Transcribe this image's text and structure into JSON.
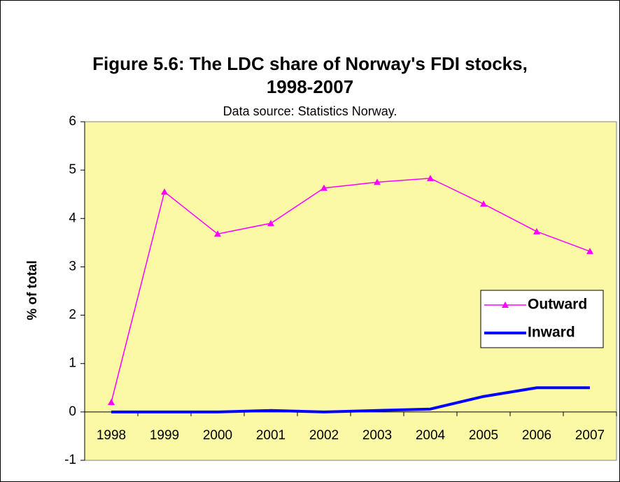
{
  "chart_data": {
    "type": "line",
    "title": [
      "Figure 5.6: The LDC share of Norway's FDI stocks,",
      "1998-2007"
    ],
    "subtitle": "Data source: Statistics Norway.",
    "y_label": "% of total",
    "categories": [
      "1998",
      "1999",
      "2000",
      "2001",
      "2002",
      "2003",
      "2004",
      "2005",
      "2006",
      "2007"
    ],
    "series": [
      {
        "name": "Outward",
        "color": "#ff00ff",
        "marker": "triangle",
        "values": [
          0.2,
          4.55,
          3.68,
          3.9,
          4.63,
          4.75,
          4.83,
          4.3,
          3.73,
          3.32
        ]
      },
      {
        "name": "Inward",
        "color": "#0000ff",
        "values": [
          0,
          0,
          0,
          0.03,
          0,
          0.03,
          0.06,
          0.32,
          0.5,
          0.5
        ]
      }
    ],
    "ylim": [
      -1,
      6
    ],
    "yticks": [
      -1,
      0,
      1,
      2,
      3,
      4,
      5,
      6
    ],
    "grid": false,
    "legend": "right",
    "plot_background": "#fbf8a6"
  }
}
